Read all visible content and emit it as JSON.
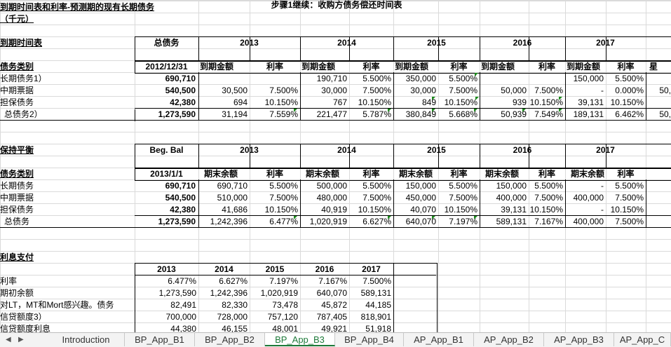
{
  "title": "步骤1继续：收购方债务偿还时间表",
  "section1": {
    "heading": "到期时间表和利率-预测期的现有长期债务",
    "units": "（千元）",
    "label": "到期时间表",
    "total_debt": "总债务",
    "years": [
      "2013",
      "2014",
      "2015",
      "2016",
      "2017"
    ],
    "category": "债务类别",
    "date": "2012/12/31",
    "amt": "到期金额",
    "rate": "利率",
    "extra": "星",
    "rows": [
      {
        "name": "长期债务1）",
        "total": "690,710",
        "c": [
          "",
          "",
          "190,710",
          "5.500%",
          "350,000",
          "5.500%",
          "",
          "",
          "150,000",
          "5.500%"
        ]
      },
      {
        "name": "中期票据",
        "total": "540,500",
        "c": [
          "30,500",
          "7.500%",
          "30,000",
          "7.500%",
          "30,000",
          "7.500%",
          "50,000",
          "7.500%",
          "-",
          "0.000%"
        ],
        "extra": "50,"
      },
      {
        "name": "担保债务",
        "total": "42,380",
        "c": [
          "694",
          "10.150%",
          "767",
          "10.150%",
          "849",
          "10.150%",
          "939",
          "10.150%",
          "39,131",
          "10.150%"
        ]
      },
      {
        "name": "总债务2）",
        "total": "1,273,590",
        "c": [
          "31,194",
          "7.559%",
          "221,477",
          "5.787%",
          "380,849",
          "5.668%",
          "50,939",
          "7.549%",
          "189,131",
          "6.462%"
        ],
        "extra": "50,"
      }
    ]
  },
  "section2": {
    "label": "保持平衡",
    "beg": "Beg. Bal",
    "years": [
      "2013",
      "2014",
      "2015",
      "2016",
      "2017"
    ],
    "category": "债务类别",
    "date": "2013/1/1",
    "amt": "期末余额",
    "rate": "利率",
    "rows": [
      {
        "name": "长期债务",
        "total": "690,710",
        "c": [
          "690,710",
          "5.500%",
          "500,000",
          "5.500%",
          "150,000",
          "5.500%",
          "150,000",
          "5.500%",
          "-",
          "5.500%"
        ]
      },
      {
        "name": "中期票据",
        "total": "540,500",
        "c": [
          "510,000",
          "7.500%",
          "480,000",
          "7.500%",
          "450,000",
          "7.500%",
          "400,000",
          "7.500%",
          "400,000",
          "7.500%"
        ]
      },
      {
        "name": "担保债务",
        "total": "42,380",
        "c": [
          "41,686",
          "10.150%",
          "40,919",
          "10.150%",
          "40,070",
          "10.150%",
          "39,131",
          "10.150%",
          "-",
          "10.150%"
        ]
      },
      {
        "name": "总债务",
        "total": "1,273,590",
        "c": [
          "1,242,396",
          "6.477%",
          "1,020,919",
          "6.627%",
          "640,070",
          "7.197%",
          "589,131",
          "7.167%",
          "400,000",
          "7.500%"
        ]
      }
    ]
  },
  "section3": {
    "label": "利息支付",
    "years": [
      "2013",
      "2014",
      "2015",
      "2016",
      "2017"
    ],
    "rows": [
      {
        "name": "利率",
        "c": [
          "6.477%",
          "6.627%",
          "7.197%",
          "7.167%",
          "7.500%"
        ]
      },
      {
        "name": "期初余额",
        "c": [
          "1,273,590",
          "1,242,396",
          "1,020,919",
          "640,070",
          "589,131"
        ]
      },
      {
        "name": "对LT，MT和Mort感兴趣。债务",
        "c": [
          "82,491",
          "82,330",
          "73,478",
          "45,872",
          "44,185"
        ]
      },
      {
        "name": "信贷额度3）",
        "c": [
          "700,000",
          "728,000",
          "757,120",
          "787,405",
          "818,901"
        ]
      },
      {
        "name": "信贷额度利息",
        "c": [
          "44,380",
          "46,155",
          "48,001",
          "49,921",
          "51,918"
        ]
      }
    ]
  },
  "tabs": [
    "Introduction",
    "BP_App_B1",
    "BP_App_B2",
    "BP_App_B3",
    "BP_App_B4",
    "AP_App_B1",
    "AP_App_B2",
    "AP_App_B3",
    "AP_App_C"
  ],
  "active_tab": "BP_App_B3"
}
